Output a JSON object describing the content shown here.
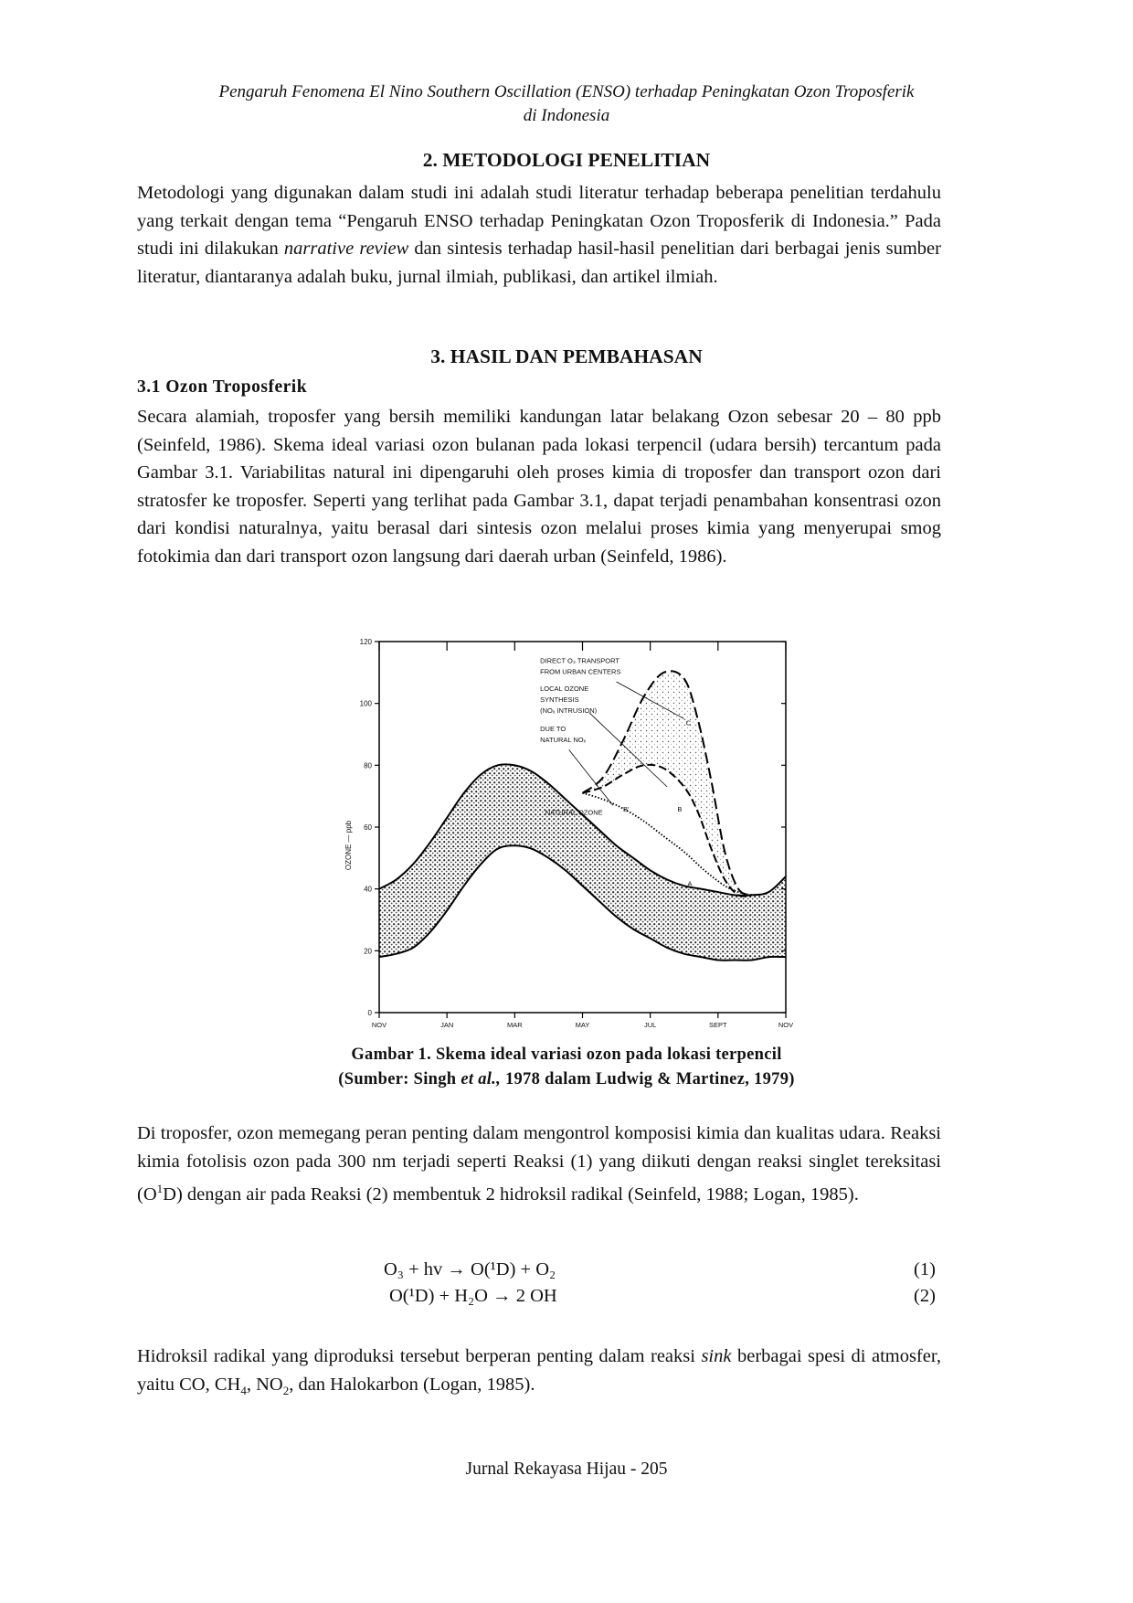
{
  "header": {
    "line1": "Pengaruh Fenomena El Nino Southern Oscillation (ENSO) terhadap Peningkatan Ozon Troposferik",
    "line2": "di Indonesia"
  },
  "section2": {
    "title": "2.  METODOLOGI PENELITIAN",
    "p1_a": "Metodologi yang digunakan dalam studi ini adalah studi literatur terhadap beberapa penelitian terdahulu yang terkait dengan tema “Pengaruh ENSO terhadap Peningkatan Ozon Troposferik di Indonesia.” Pada studi ini dilakukan ",
    "p1_em": "narrative review",
    "p1_b": " dan sintesis terhadap hasil-hasil penelitian dari berbagai jenis sumber literatur, diantaranya adalah buku, jurnal ilmiah, publikasi, dan artikel ilmiah."
  },
  "section3": {
    "title": "3. HASIL DAN PEMBAHASAN",
    "sub1": "3.1 Ozon Troposferik",
    "p1": "Secara alamiah, troposfer yang bersih memiliki kandungan latar belakang Ozon sebesar 20 – 80 ppb (Seinfeld, 1986). Skema ideal variasi ozon bulanan pada lokasi terpencil (udara bersih) tercantum pada Gambar 3.1. Variabilitas natural ini dipengaruhi oleh proses kimia di troposfer dan transport ozon dari stratosfer ke troposfer. Seperti yang terlihat pada Gambar 3.1, dapat terjadi penambahan konsentrasi ozon dari kondisi naturalnya, yaitu berasal dari sintesis ozon melalui proses kimia yang menyerupai smog fotokimia dan dari transport ozon langsung dari daerah urban (Seinfeld, 1986).",
    "p2_a": "Di troposfer, ozon memegang peran penting dalam mengontrol komposisi kimia dan kualitas udara. Reaksi kimia fotolisis ozon pada 300 nm terjadi seperti Reaksi (1) yang diikuti dengan reaksi singlet tereksitasi (O",
    "p2_sup": "1",
    "p2_b": "D) dengan air pada Reaksi (2) membentuk 2 hidroksil radikal (Seinfeld, 1988; Logan, 1985).",
    "p3_a": "Hidroksil radikal yang diproduksi tersebut berperan penting dalam reaksi ",
    "p3_em": "sink",
    "p3_b": " berbagai spesi di atmosfer, yaitu CO, CH",
    "p3_sub1": "4",
    "p3_c": ", NO",
    "p3_sub2": "2",
    "p3_d": ", dan Halokarbon (Logan, 1985)."
  },
  "equations": [
    {
      "lhs": "O₃ + hv → O(¹D) + O₂",
      "num": "(1)"
    },
    {
      "lhs": "O(¹D) + H₂O → 2 OH",
      "num": "(2)"
    }
  ],
  "figure": {
    "caption1": "Gambar 1. Skema ideal variasi ozon pada lokasi terpencil",
    "caption2_a": "(Sumber: Singh ",
    "caption2_em": "et al.,",
    "caption2_b": " 1978 dalam Ludwig & Martinez, 1979)"
  },
  "chart_data": {
    "type": "line",
    "ylabel": "OZONE — ppb",
    "ylim": [
      0,
      120
    ],
    "yticks": [
      0,
      20,
      40,
      60,
      80,
      100,
      120
    ],
    "xticks": [
      "NOV",
      "JAN",
      "MAR",
      "MAY",
      "JUL",
      "SEPT",
      "NOV"
    ],
    "annotations": {
      "direct": [
        "DIRECT O₃ TRANSPORT",
        "FROM URBAN CENTERS"
      ],
      "local": [
        "LOCAL OZONE",
        "SYNTHESIS",
        "(NOₓ INTRUSION)"
      ],
      "due": [
        "DUE TO",
        "NATURAL NOₓ"
      ],
      "natural": "NATURAL OZONE",
      "A": "A",
      "B1": "B'",
      "B2": "B",
      "C": "C"
    },
    "series": [
      {
        "values_x": [
          0,
          0.5,
          1,
          1.5,
          2,
          2.5,
          3,
          3.5,
          4,
          4.5,
          5,
          5.5,
          6,
          6.5,
          7,
          7.5,
          8,
          8.5,
          9,
          9.5,
          10,
          10.5,
          11,
          11.5,
          12
        ],
        "upper": [
          40,
          43,
          48,
          55,
          63,
          71,
          77,
          80,
          80,
          78,
          74,
          69,
          64,
          59,
          54,
          50,
          46,
          43,
          41,
          40,
          39,
          38,
          38,
          39,
          44
        ],
        "lower": [
          18,
          19,
          21,
          26,
          33,
          41,
          48,
          53,
          54,
          53,
          50,
          46,
          41,
          36,
          31,
          27,
          24,
          21,
          19,
          18,
          17,
          17,
          17,
          18,
          18
        ]
      }
    ],
    "curve_B_prime": {
      "x": [
        6,
        6.6,
        7.2,
        7.8,
        8.4,
        9,
        9.6,
        10.2,
        10.6,
        11
      ],
      "y": [
        71,
        69,
        66,
        62,
        57,
        52,
        46,
        41,
        39,
        38
      ]
    },
    "curve_B": {
      "x": [
        6,
        6.6,
        7.2,
        7.8,
        8.4,
        9,
        9.4,
        9.8,
        10.2,
        10.6,
        11
      ],
      "y": [
        71,
        73,
        77,
        80,
        79,
        73,
        65,
        53,
        43,
        38,
        38
      ]
    },
    "curve_C": {
      "x": [
        6,
        6.6,
        7.2,
        7.8,
        8.4,
        9,
        9.4,
        9.8,
        10.2,
        10.6,
        11
      ],
      "y": [
        71,
        76,
        88,
        102,
        110,
        108,
        95,
        75,
        52,
        40,
        38
      ]
    }
  }
}
